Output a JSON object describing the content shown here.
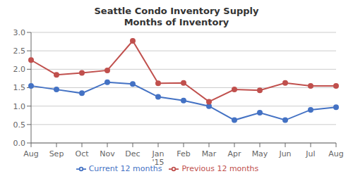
{
  "chart_data": {
    "type": "line",
    "title": "Seattle Condo Inventory Supply",
    "subtitle": "Months of Inventory",
    "categories": [
      "Aug",
      "Sep",
      "Oct",
      "Nov",
      "Dec",
      "Jan\n'15",
      "Feb",
      "Mar",
      "Apr",
      "May",
      "Jun",
      "Jul",
      "Aug"
    ],
    "series": [
      {
        "name": "Current 12 months",
        "color": "#4472C4",
        "marker": "circle",
        "values": [
          1.55,
          1.45,
          1.35,
          1.65,
          1.6,
          1.25,
          1.15,
          1.0,
          0.62,
          0.82,
          0.62,
          0.9,
          0.97
        ]
      },
      {
        "name": "Previous 12 months",
        "color": "#C0504D",
        "marker": "circle",
        "values": [
          2.25,
          1.85,
          1.9,
          1.97,
          2.77,
          1.62,
          1.63,
          1.12,
          1.45,
          1.43,
          1.63,
          1.55,
          1.55
        ]
      }
    ],
    "ylim": [
      0.0,
      3.0
    ],
    "yticks": [
      {
        "value": 0.0,
        "label": "0.0"
      },
      0.5,
      {
        "value": 1.0,
        "label": "1.0"
      },
      1.5,
      {
        "value": 2.0,
        "label": "2.0"
      },
      2.5,
      {
        "value": 3.0,
        "label": "3.0"
      }
    ],
    "grid": true,
    "legend": "bottom"
  }
}
